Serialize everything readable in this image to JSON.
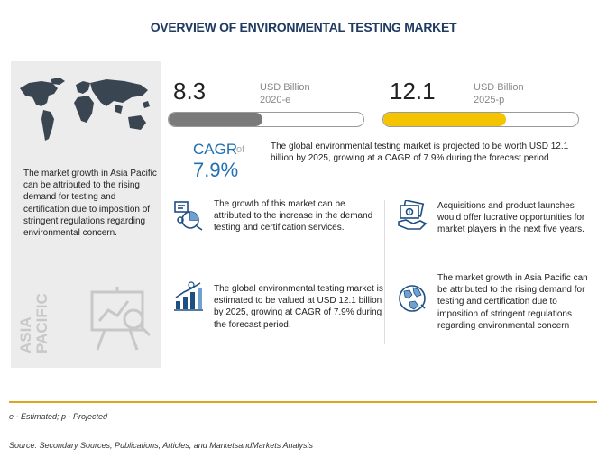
{
  "title": "OVERVIEW OF ENVIRONMENTAL TESTING MARKET",
  "left_panel": {
    "text": "The market growth in Asia Pacific can be attributed to the rising demand for testing and certification due to imposition of stringent regulations regarding environmental concern.",
    "region_label_1": "ASIA",
    "region_label_2": "PACIFIC"
  },
  "stats": [
    {
      "value": "8.3",
      "unit": "USD Billion",
      "year": "2020-e",
      "progress": 0.48,
      "color": "#7a7a7a"
    },
    {
      "value": "12.1",
      "unit": "USD Billion",
      "year": "2025-p",
      "progress": 0.63,
      "color": "#f5c400"
    }
  ],
  "cagr": {
    "label": "CAGR",
    "of": "of",
    "value": "7.9%",
    "description": "The global environmental testing market is projected to be worth USD 12.1 billion by 2025, growing at a CAGR of 7.9% during the forecast period."
  },
  "cards": [
    {
      "icon": "analytics-icon",
      "text": "The growth of this market can be attributed to the increase in the demand testing and certification services."
    },
    {
      "icon": "money-icon",
      "text": "Acquisitions and product launches would offer lucrative opportunities for market players in the next five years."
    },
    {
      "icon": "growth-chart-icon",
      "text": "The global environmental testing market is estimated to be valued at USD 12.1 billion by 2025, growing at CAGR of 7.9% during the forecast period."
    },
    {
      "icon": "globe-icon",
      "text": "The market growth in Asia Pacific can be attributed to the rising demand for testing and certification due to imposition of stringent regulations regarding environmental concern"
    }
  ],
  "footnote": "e - Estimated; p - Projected",
  "source": "Source: Secondary Sources, Publications, Articles, and MarketsandMarkets Analysis"
}
